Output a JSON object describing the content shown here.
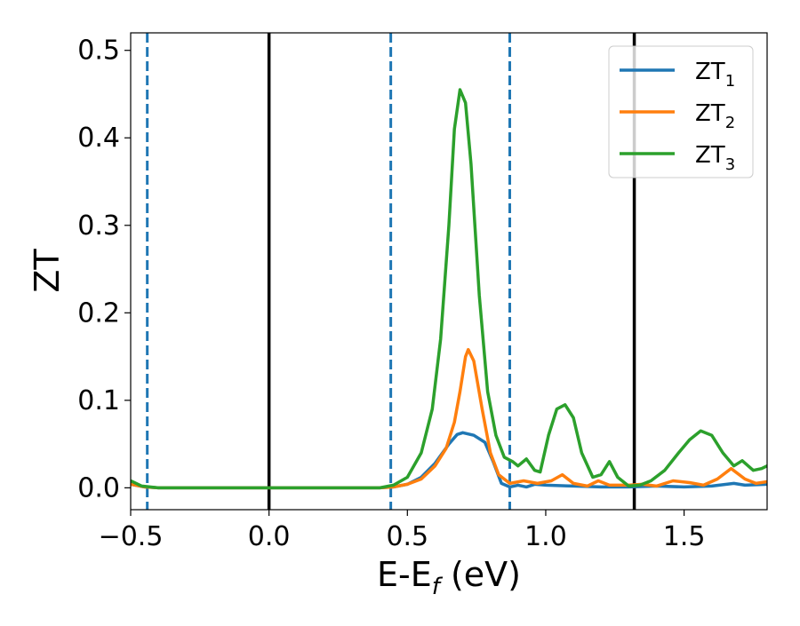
{
  "chart_data": {
    "type": "line",
    "title": "",
    "xlabel": "E-E",
    "xlabel_sub": "f",
    "xlabel_unit": " (eV)",
    "ylabel": "ZT",
    "xlim": [
      -0.5,
      1.8
    ],
    "ylim": [
      -0.025,
      0.52
    ],
    "xticks": [
      {
        "value": -0.5,
        "label": "−0.5"
      },
      {
        "value": 0.0,
        "label": "0.0"
      },
      {
        "value": 0.5,
        "label": "0.5"
      },
      {
        "value": 1.0,
        "label": "1.0"
      },
      {
        "value": 1.5,
        "label": "1.5"
      }
    ],
    "yticks": [
      {
        "value": 0.0,
        "label": "0.0"
      },
      {
        "value": 0.1,
        "label": "0.1"
      },
      {
        "value": 0.2,
        "label": "0.2"
      },
      {
        "value": 0.3,
        "label": "0.3"
      },
      {
        "value": 0.4,
        "label": "0.4"
      },
      {
        "value": 0.5,
        "label": "0.5"
      }
    ],
    "grid": false,
    "legend_position": "top-right",
    "vertical_lines": [
      {
        "x": -0.44,
        "style": "dashed",
        "color": "#1f77b4"
      },
      {
        "x": 0.0,
        "style": "solid",
        "color": "#000000"
      },
      {
        "x": 0.44,
        "style": "dashed",
        "color": "#1f77b4"
      },
      {
        "x": 0.87,
        "style": "dashed",
        "color": "#1f77b4"
      },
      {
        "x": 1.32,
        "style": "solid",
        "color": "#000000"
      }
    ],
    "series": [
      {
        "name": "ZT",
        "sub": "1",
        "color": "#1f77b4",
        "points": [
          [
            -0.5,
            0.004
          ],
          [
            -0.45,
            0.001
          ],
          [
            -0.4,
            0.0
          ],
          [
            0.0,
            0.0
          ],
          [
            0.4,
            0.0
          ],
          [
            0.45,
            0.001
          ],
          [
            0.5,
            0.004
          ],
          [
            0.55,
            0.012
          ],
          [
            0.6,
            0.028
          ],
          [
            0.65,
            0.05
          ],
          [
            0.68,
            0.061
          ],
          [
            0.7,
            0.063
          ],
          [
            0.74,
            0.06
          ],
          [
            0.78,
            0.052
          ],
          [
            0.81,
            0.03
          ],
          [
            0.84,
            0.005
          ],
          [
            0.87,
            0.001
          ],
          [
            0.9,
            0.003
          ],
          [
            0.93,
            0.001
          ],
          [
            0.96,
            0.004
          ],
          [
            1.0,
            0.003
          ],
          [
            1.1,
            0.002
          ],
          [
            1.2,
            0.001
          ],
          [
            1.3,
            0.001
          ],
          [
            1.4,
            0.002
          ],
          [
            1.5,
            0.001
          ],
          [
            1.6,
            0.002
          ],
          [
            1.68,
            0.005
          ],
          [
            1.72,
            0.003
          ],
          [
            1.8,
            0.004
          ]
        ]
      },
      {
        "name": "ZT",
        "sub": "2",
        "color": "#ff7f0e",
        "points": [
          [
            -0.5,
            0.004
          ],
          [
            -0.45,
            0.001
          ],
          [
            -0.4,
            0.0
          ],
          [
            0.0,
            0.0
          ],
          [
            0.4,
            0.0
          ],
          [
            0.45,
            0.001
          ],
          [
            0.5,
            0.004
          ],
          [
            0.55,
            0.01
          ],
          [
            0.6,
            0.025
          ],
          [
            0.64,
            0.045
          ],
          [
            0.67,
            0.075
          ],
          [
            0.69,
            0.11
          ],
          [
            0.71,
            0.15
          ],
          [
            0.72,
            0.158
          ],
          [
            0.74,
            0.145
          ],
          [
            0.77,
            0.09
          ],
          [
            0.8,
            0.04
          ],
          [
            0.83,
            0.015
          ],
          [
            0.87,
            0.005
          ],
          [
            0.92,
            0.008
          ],
          [
            0.97,
            0.005
          ],
          [
            1.02,
            0.008
          ],
          [
            1.06,
            0.015
          ],
          [
            1.1,
            0.005
          ],
          [
            1.15,
            0.002
          ],
          [
            1.19,
            0.008
          ],
          [
            1.23,
            0.003
          ],
          [
            1.3,
            0.003
          ],
          [
            1.35,
            0.004
          ],
          [
            1.4,
            0.002
          ],
          [
            1.46,
            0.008
          ],
          [
            1.52,
            0.006
          ],
          [
            1.57,
            0.003
          ],
          [
            1.62,
            0.01
          ],
          [
            1.67,
            0.022
          ],
          [
            1.72,
            0.01
          ],
          [
            1.76,
            0.005
          ],
          [
            1.8,
            0.007
          ]
        ]
      },
      {
        "name": "ZT",
        "sub": "3",
        "color": "#2ca02c",
        "points": [
          [
            -0.5,
            0.008
          ],
          [
            -0.46,
            0.002
          ],
          [
            -0.4,
            0.0
          ],
          [
            0.0,
            0.0
          ],
          [
            0.4,
            0.0
          ],
          [
            0.45,
            0.003
          ],
          [
            0.5,
            0.012
          ],
          [
            0.55,
            0.04
          ],
          [
            0.59,
            0.09
          ],
          [
            0.62,
            0.17
          ],
          [
            0.65,
            0.3
          ],
          [
            0.67,
            0.41
          ],
          [
            0.69,
            0.455
          ],
          [
            0.71,
            0.44
          ],
          [
            0.73,
            0.37
          ],
          [
            0.76,
            0.22
          ],
          [
            0.79,
            0.11
          ],
          [
            0.82,
            0.06
          ],
          [
            0.85,
            0.035
          ],
          [
            0.88,
            0.03
          ],
          [
            0.9,
            0.025
          ],
          [
            0.93,
            0.033
          ],
          [
            0.96,
            0.02
          ],
          [
            0.98,
            0.018
          ],
          [
            1.01,
            0.06
          ],
          [
            1.04,
            0.09
          ],
          [
            1.07,
            0.095
          ],
          [
            1.1,
            0.08
          ],
          [
            1.13,
            0.04
          ],
          [
            1.17,
            0.012
          ],
          [
            1.2,
            0.015
          ],
          [
            1.23,
            0.03
          ],
          [
            1.26,
            0.012
          ],
          [
            1.3,
            0.002
          ],
          [
            1.34,
            0.003
          ],
          [
            1.38,
            0.008
          ],
          [
            1.43,
            0.02
          ],
          [
            1.48,
            0.04
          ],
          [
            1.52,
            0.055
          ],
          [
            1.56,
            0.065
          ],
          [
            1.6,
            0.06
          ],
          [
            1.64,
            0.04
          ],
          [
            1.68,
            0.025
          ],
          [
            1.71,
            0.031
          ],
          [
            1.75,
            0.02
          ],
          [
            1.78,
            0.022
          ],
          [
            1.8,
            0.025
          ]
        ]
      }
    ]
  }
}
